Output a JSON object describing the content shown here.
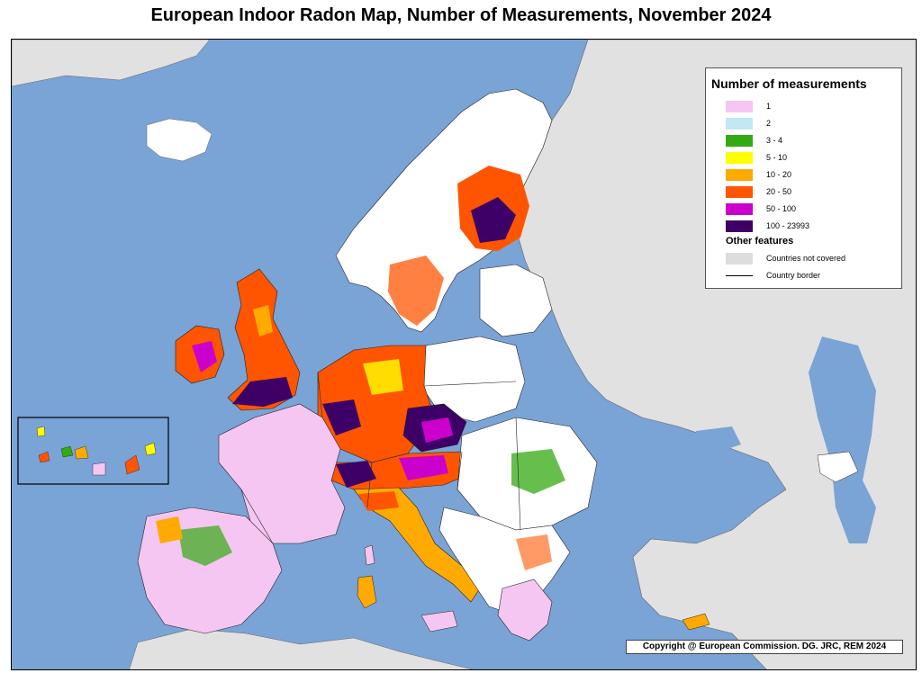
{
  "title": "European Indoor Radon Map, Number of Measurements, November 2024",
  "legend": {
    "title": "Number of measurements",
    "classes": [
      {
        "label": "1",
        "color": "#f5c6f2"
      },
      {
        "label": "2",
        "color": "#c3e8f5"
      },
      {
        "label": "3 - 4",
        "color": "#33aa11"
      },
      {
        "label": "5 - 10",
        "color": "#ffff00"
      },
      {
        "label": "10 - 20",
        "color": "#ffaa00"
      },
      {
        "label": "20 - 50",
        "color": "#ff5500"
      },
      {
        "label": "50 - 100",
        "color": "#cc00cc"
      },
      {
        "label": "100 - 23993",
        "color": "#3d0066"
      }
    ],
    "other_title": "Other features",
    "other": [
      {
        "label": "Countries not covered",
        "color": "#dddddd"
      },
      {
        "label": "Country border",
        "color": "#000000"
      }
    ]
  },
  "copyright": "Copyright @ European Commission. DG. JRC, REM 2024",
  "colors": {
    "sea": "#7aa3d6",
    "land_not_covered": "#e1e1e1",
    "land_covered": "#ffffff",
    "border": "#222222"
  }
}
